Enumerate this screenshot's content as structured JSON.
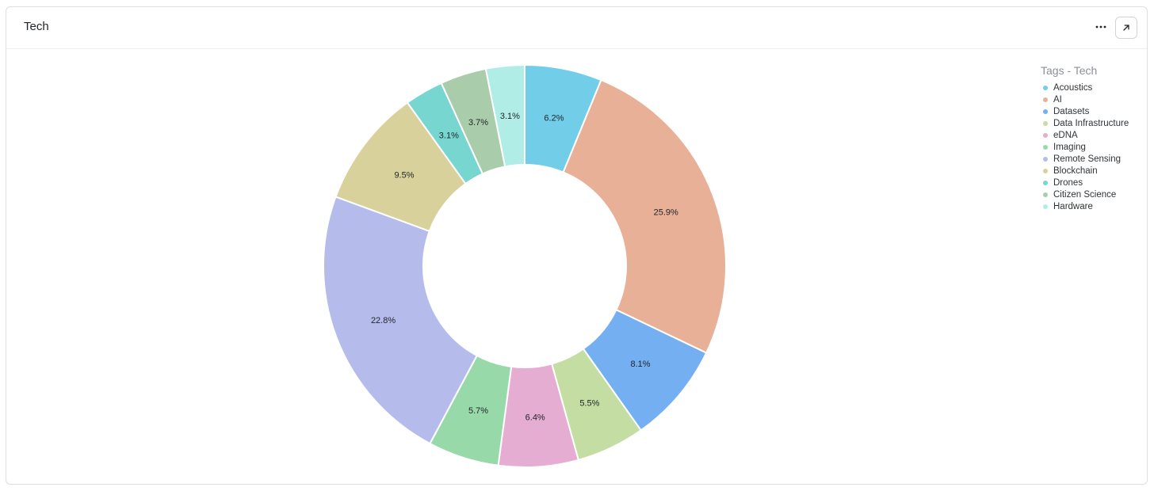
{
  "card": {
    "title": "Tech"
  },
  "header": {
    "more_icon": "more-horizontal-icon",
    "expand_icon": "arrow-up-right-icon"
  },
  "chart_data": {
    "type": "pie",
    "donut": true,
    "legend_title": "Tags - Tech",
    "legend_position": "top-right",
    "slices": [
      {
        "label": "Acoustics",
        "value": 6.2,
        "display": "6.2%",
        "color": "#72cde9"
      },
      {
        "label": "AI",
        "value": 25.9,
        "display": "25.9%",
        "color": "#e8b097"
      },
      {
        "label": "Datasets",
        "value": 8.1,
        "display": "8.1%",
        "color": "#74aff2"
      },
      {
        "label": "Data Infrastructure",
        "value": 5.5,
        "display": "5.5%",
        "color": "#c3dda2"
      },
      {
        "label": "eDNA",
        "value": 6.4,
        "display": "6.4%",
        "color": "#e6add2"
      },
      {
        "label": "Imaging",
        "value": 5.7,
        "display": "5.7%",
        "color": "#98d9a9"
      },
      {
        "label": "Remote Sensing",
        "value": 22.8,
        "display": "22.8%",
        "color": "#b5bcec"
      },
      {
        "label": "Blockchain",
        "value": 9.5,
        "display": "9.5%",
        "color": "#d8d19b"
      },
      {
        "label": "Drones",
        "value": 3.1,
        "display": "3.1%",
        "color": "#77d6cf"
      },
      {
        "label": "Citizen Science",
        "value": 3.7,
        "display": "3.7%",
        "color": "#a9cdaa"
      },
      {
        "label": "Hardware",
        "value": 3.1,
        "display": "3.1%",
        "color": "#b1ede7"
      }
    ]
  }
}
